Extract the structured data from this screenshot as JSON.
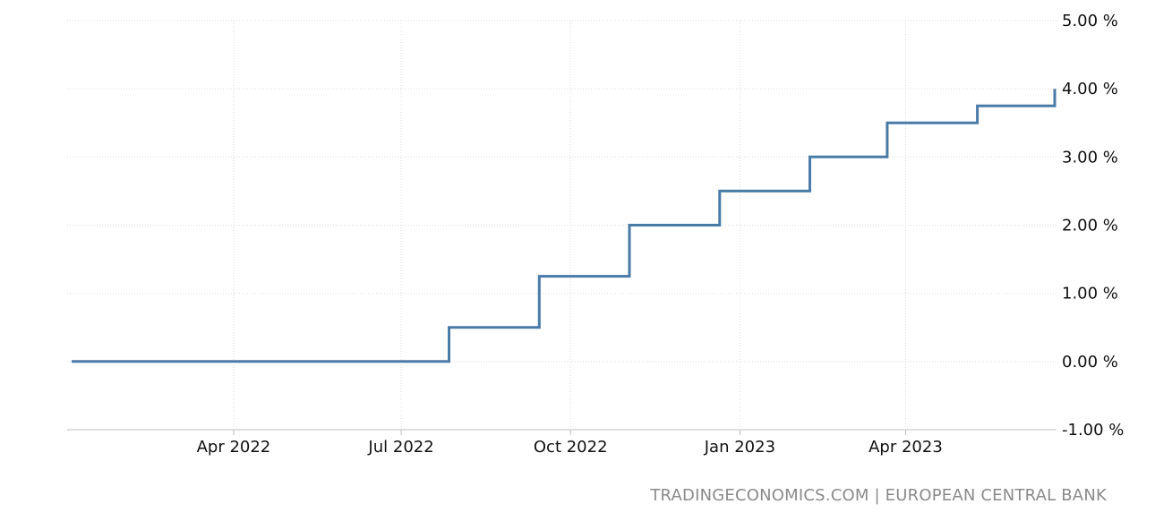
{
  "source": "TRADINGECONOMICS.COM | EUROPEAN CENTRAL BANK",
  "chart_data": {
    "type": "line",
    "step": true,
    "title": "",
    "xlabel": "",
    "ylabel": "",
    "x_range": [
      "2022-01-03",
      "2023-06-21"
    ],
    "ylim": [
      -1,
      5
    ],
    "yticks": [
      5,
      4,
      3,
      2,
      1,
      0,
      -1
    ],
    "ytick_labels": [
      "5.00 %",
      "4.00 %",
      "3.00 %",
      "2.00 %",
      "1.00 %",
      "0.00 %",
      "-1.00 %"
    ],
    "xticks": [
      "2022-04-01",
      "2022-07-01",
      "2022-10-01",
      "2023-01-01",
      "2023-04-01"
    ],
    "xtick_labels": [
      "Apr 2022",
      "Jul 2022",
      "Oct 2022",
      "Jan 2023",
      "Apr 2023"
    ],
    "grid": true,
    "line_color": "#4a7ba7",
    "series": [
      {
        "x": [
          "2022-01-03",
          "2022-07-27",
          "2022-09-14",
          "2022-11-02",
          "2022-12-21",
          "2023-02-08",
          "2023-03-22",
          "2023-05-10",
          "2023-06-21"
        ],
        "values": [
          0,
          0.5,
          1.25,
          2,
          2.5,
          3,
          3.5,
          3.75,
          4
        ]
      }
    ]
  }
}
